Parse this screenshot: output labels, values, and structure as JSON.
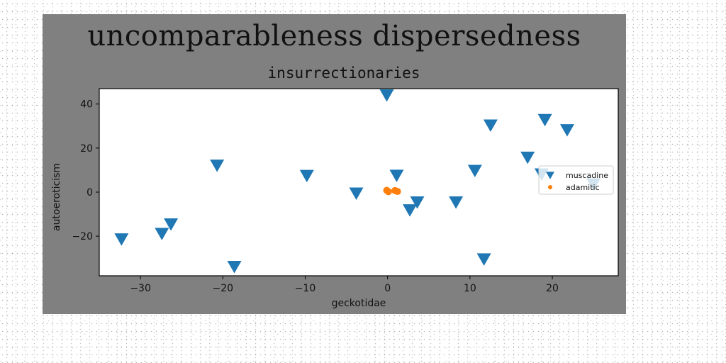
{
  "suptitle": "uncomparableness dispersedness",
  "chart_data": {
    "type": "scatter",
    "title": "insurrectionaries",
    "xlabel": "geckotidae",
    "ylabel": "autoeroticism",
    "xlim": [
      -35,
      28
    ],
    "ylim": [
      -38,
      47
    ],
    "xticks": [
      -30,
      -20,
      -10,
      0,
      10,
      20
    ],
    "yticks": [
      -20,
      0,
      20,
      40
    ],
    "grid": false,
    "legend_position": "right",
    "series": [
      {
        "name": "muscadine",
        "marker": "triangle-down",
        "color": "#1f77b4",
        "x": [
          -0.1,
          -32.3,
          -27.4,
          -26.3,
          -20.7,
          -18.6,
          -9.8,
          -3.8,
          1.1,
          2.7,
          3.6,
          8.3,
          10.6,
          11.7,
          12.5,
          17.0,
          18.7,
          19.1,
          21.8,
          25.0
        ],
        "y": [
          44.1,
          -21.3,
          -18.8,
          -14.5,
          12.2,
          -33.8,
          7.5,
          -0.5,
          7.6,
          -8.1,
          -4.5,
          -4.5,
          9.8,
          -30.4,
          30.4,
          15.8,
          8.2,
          32.9,
          28.3,
          3.7
        ]
      },
      {
        "name": "adamitic",
        "marker": "circle",
        "color": "#ff7f0e",
        "x": [
          -0.1,
          0.1,
          0.9,
          1.2
        ],
        "y": [
          0.8,
          0.2,
          0.7,
          0.3
        ]
      }
    ]
  }
}
